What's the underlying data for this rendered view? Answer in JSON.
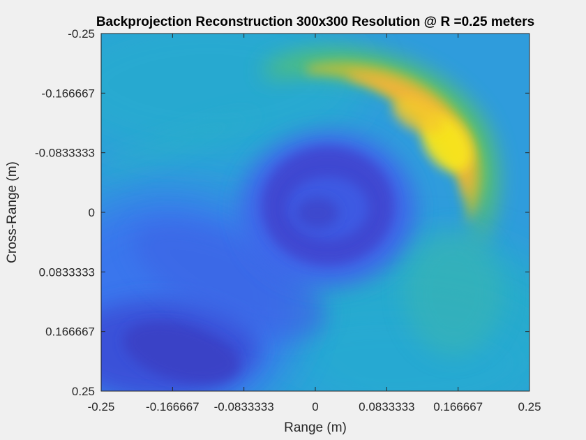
{
  "chart_data": {
    "type": "heatmap",
    "title": "Backprojection Reconstruction 300x300 Resolution @ R =0.25 meters",
    "xlabel": "Range (m)",
    "ylabel": "Cross-Range (m)",
    "xlim": [
      -0.25,
      0.25
    ],
    "ylim": [
      -0.25,
      0.25
    ],
    "y_direction": "reversed",
    "colormap": "parula",
    "resolution": [
      300,
      300
    ],
    "x_ticks": [
      {
        "value": -0.25,
        "label": "-0.25"
      },
      {
        "value": -0.166667,
        "label": "-0.166667"
      },
      {
        "value": -0.0833333,
        "label": "-0.0833333"
      },
      {
        "value": 0,
        "label": "0"
      },
      {
        "value": 0.0833333,
        "label": "0.0833333"
      },
      {
        "value": 0.166667,
        "label": "0.166667"
      },
      {
        "value": 0.25,
        "label": "0.25"
      }
    ],
    "y_ticks": [
      {
        "value": -0.25,
        "label": "-0.25"
      },
      {
        "value": -0.166667,
        "label": "-0.166667"
      },
      {
        "value": -0.0833333,
        "label": "-0.0833333"
      },
      {
        "value": 0,
        "label": "0"
      },
      {
        "value": 0.0833333,
        "label": "0.0833333"
      },
      {
        "value": 0.166667,
        "label": "0.166667"
      },
      {
        "value": 0.25,
        "label": "0.25"
      }
    ],
    "features": [
      {
        "name": "crescent-peak",
        "x": 0.15,
        "y": -0.11,
        "level": 1.0
      },
      {
        "name": "central-low",
        "x": 0.02,
        "y": -0.01,
        "level": 0.1
      },
      {
        "name": "lower-left-low",
        "x": -0.16,
        "y": 0.2,
        "level": 0.05
      }
    ]
  }
}
